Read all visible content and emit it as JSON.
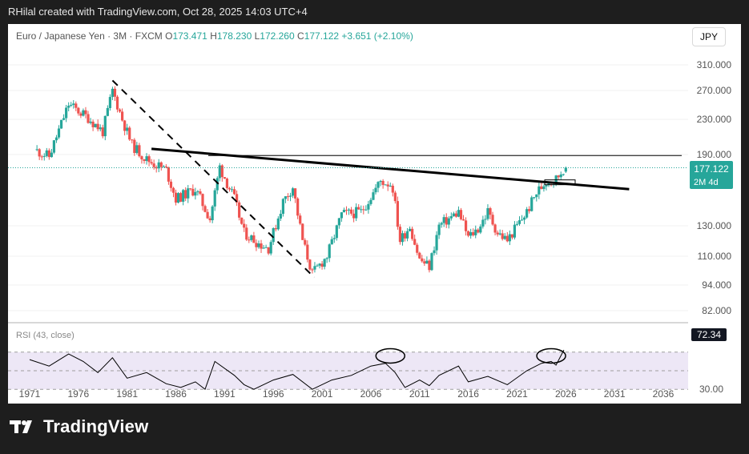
{
  "header": {
    "credit": "RHilal created with TradingView.com, Oct 28, 2025 14:03 UTC+4"
  },
  "legend": {
    "symbol": "Euro / Japanese Yen · 3M · FXCM",
    "open_label": "O",
    "open": "173.471",
    "high_label": "H",
    "high": "178.230",
    "low_label": "L",
    "low": "172.260",
    "close_label": "C",
    "close": "177.122",
    "change": "+3.651 (+2.10%)"
  },
  "currency_button": "JPY",
  "price_tag": {
    "price": "177.122",
    "countdown": "2M 4d"
  },
  "rsi_label": "RSI (43, close)",
  "rsi_tag": "72.34",
  "brand": "TradingView",
  "colors": {
    "up": "#26a69a",
    "down": "#ef5350",
    "rsi_fill": "#ede7f6",
    "line": "#000000"
  },
  "chart_data": [
    {
      "type": "candlestick",
      "title": "Euro / Japanese Yen · 3M · FXCM",
      "y_scale": "log",
      "y_ticks": [
        "310.000",
        "270.000",
        "230.000",
        "190.000",
        "130.000",
        "110.000",
        "94.000",
        "82.000"
      ],
      "x_ticks": [
        "1971",
        "1976",
        "1981",
        "1986",
        "1991",
        "1996",
        "2001",
        "2006",
        "2011",
        "2016",
        "2021",
        "2026",
        "2031",
        "2036"
      ],
      "last": {
        "open": 173.471,
        "high": 178.23,
        "low": 172.26,
        "close": 177.122
      },
      "series": [
        {
          "approx_close_path": [
            [
              1971.5,
              195
            ],
            [
              1973,
              188
            ],
            [
              1975,
              250
            ],
            [
              1977,
              232
            ],
            [
              1978.5,
              215
            ],
            [
              1979.5,
              270
            ],
            [
              1980.5,
              230
            ],
            [
              1981.5,
              200
            ],
            [
              1983,
              185
            ],
            [
              1985,
              175
            ],
            [
              1986,
              150
            ],
            [
              1988,
              158
            ],
            [
              1989.5,
              135
            ],
            [
              1990.5,
              178
            ],
            [
              1992,
              150
            ],
            [
              1993,
              125
            ],
            [
              1994.5,
              118
            ],
            [
              1995.5,
              115
            ],
            [
              1997,
              148
            ],
            [
              1998,
              160
            ],
            [
              1999,
              120
            ],
            [
              2000,
              100
            ],
            [
              2001.5,
              110
            ],
            [
              2003,
              138
            ],
            [
              2005,
              140
            ],
            [
              2007,
              165
            ],
            [
              2008.2,
              162
            ],
            [
              2009,
              120
            ],
            [
              2010,
              130
            ],
            [
              2011,
              108
            ],
            [
              2012,
              104
            ],
            [
              2013,
              130
            ],
            [
              2015,
              140
            ],
            [
              2016,
              122
            ],
            [
              2017,
              128
            ],
            [
              2018,
              140
            ],
            [
              2019,
              125
            ],
            [
              2020,
              120
            ],
            [
              2021,
              130
            ],
            [
              2022,
              140
            ],
            [
              2023,
              155
            ],
            [
              2024,
              165
            ],
            [
              2025,
              167
            ],
            [
              2025.8,
              177.122
            ]
          ]
        }
      ],
      "annotations": [
        {
          "type": "dashed trendline",
          "from": [
            1979.5,
            285
          ],
          "to": [
            2000.2,
            98
          ]
        },
        {
          "type": "trendline",
          "from": [
            1983.5,
            196
          ],
          "to": [
            2032.5,
            158
          ]
        },
        {
          "type": "horizontal line",
          "value": 189
        }
      ]
    },
    {
      "type": "line",
      "title": "RSI (43, close)",
      "y_ticks": [
        "72.34",
        "30.00"
      ],
      "last": 72.34,
      "series": [
        {
          "name": "RSI (43, close)",
          "approx_path": [
            [
              1971,
              62
            ],
            [
              1973,
              55
            ],
            [
              1975,
              68
            ],
            [
              1976.5,
              60
            ],
            [
              1978,
              48
            ],
            [
              1979.5,
              64
            ],
            [
              1981,
              42
            ],
            [
              1983,
              48
            ],
            [
              1985,
              36
            ],
            [
              1986.5,
              32
            ],
            [
              1988,
              38
            ],
            [
              1989,
              30
            ],
            [
              1990,
              60
            ],
            [
              1992,
              45
            ],
            [
              1993,
              35
            ],
            [
              1994,
              30
            ],
            [
              1996,
              40
            ],
            [
              1998,
              46
            ],
            [
              2000,
              30
            ],
            [
              2002,
              40
            ],
            [
              2004,
              45
            ],
            [
              2006,
              55
            ],
            [
              2007.5,
              58
            ],
            [
              2008.5,
              48
            ],
            [
              2009.5,
              32
            ],
            [
              2011,
              40
            ],
            [
              2012,
              34
            ],
            [
              2013,
              45
            ],
            [
              2015,
              55
            ],
            [
              2016,
              38
            ],
            [
              2018,
              44
            ],
            [
              2020,
              35
            ],
            [
              2022,
              50
            ],
            [
              2023.5,
              58
            ],
            [
              2024.5,
              60
            ],
            [
              2025,
              56
            ],
            [
              2025.8,
              72.34
            ]
          ]
        }
      ],
      "annotations": [
        {
          "type": "circle",
          "near_x": 2008
        },
        {
          "type": "circle",
          "near_x": 2024.5
        }
      ]
    }
  ]
}
